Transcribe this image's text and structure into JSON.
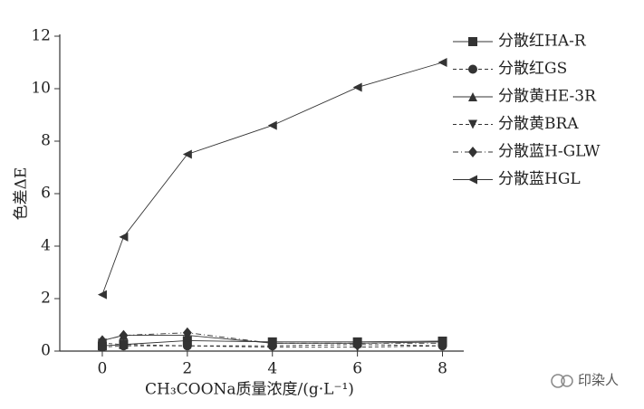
{
  "chart_data": {
    "type": "line",
    "x_label": "CH₃COONa质量浓度/(g·L⁻¹)",
    "y_label": "色差ΔE",
    "x": [
      0,
      0.5,
      2,
      4,
      6,
      8
    ],
    "xlim": [
      -1,
      8.5
    ],
    "xticks": [
      0,
      2,
      4,
      6,
      8
    ],
    "ylim": [
      0,
      12
    ],
    "yticks": [
      0,
      2,
      4,
      6,
      8,
      10,
      12
    ],
    "legend": "upper right",
    "series": [
      {
        "name": "分散红HA-R",
        "color": "#333333",
        "marker": "square",
        "dash": "solid",
        "values": [
          0.2,
          0.25,
          0.4,
          0.35,
          0.35,
          0.38
        ]
      },
      {
        "name": "分散红GS",
        "color": "#333333",
        "marker": "circle",
        "dash": "dashed",
        "values": [
          0.15,
          0.2,
          0.2,
          0.2,
          0.25,
          0.2
        ]
      },
      {
        "name": "分散黄HE-3R",
        "color": "#333333",
        "marker": "triangle-up",
        "dash": "solid",
        "values": [
          0.4,
          0.6,
          0.6,
          0.3,
          0.3,
          0.35
        ]
      },
      {
        "name": "分散黄BRA",
        "color": "#333333",
        "marker": "triangle-down",
        "dash": "dashed",
        "values": [
          0.3,
          0.25,
          0.2,
          0.15,
          0.15,
          0.2
        ]
      },
      {
        "name": "分散蓝H-GLW",
        "color": "#333333",
        "marker": "diamond",
        "dash": "dashdot",
        "values": [
          0.4,
          0.6,
          0.7,
          0.3,
          0.3,
          0.3
        ]
      },
      {
        "name": "分散蓝HGL",
        "color": "#333333",
        "marker": "triangle-left",
        "dash": "solid",
        "values": [
          2.15,
          4.35,
          7.5,
          8.6,
          10.05,
          11.0
        ]
      }
    ]
  },
  "watermark": "印染人"
}
